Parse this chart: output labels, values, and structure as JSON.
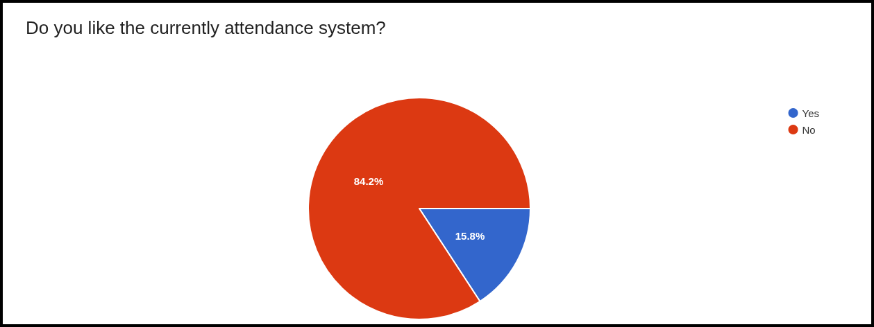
{
  "chart_data": {
    "type": "pie",
    "title": "Do you like the currently attendance system?",
    "categories": [
      "Yes",
      "No"
    ],
    "values": [
      15.8,
      84.2
    ],
    "colors": [
      "#3366cc",
      "#dc3912"
    ],
    "value_labels": [
      "15.8%",
      "84.2%"
    ],
    "legend": "top right"
  }
}
